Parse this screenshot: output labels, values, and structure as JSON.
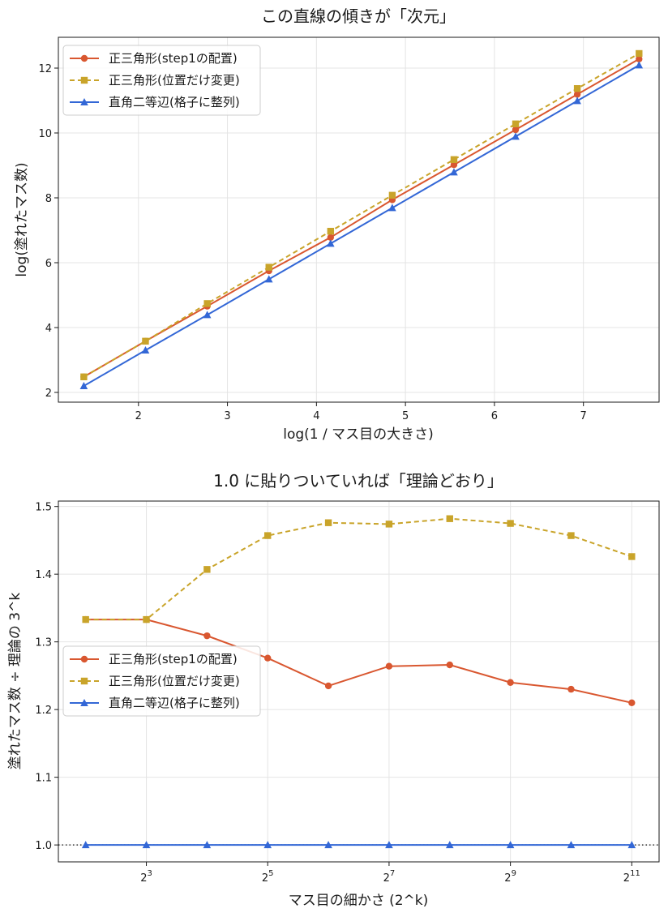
{
  "colors": {
    "equilateral_step1": "#d95730",
    "equilateral_moved": "#c9a42a",
    "right_isosceles": "#3367d6",
    "reference_line": "#333333"
  },
  "chart_data": [
    {
      "type": "line",
      "title": "この直線の傾きが「次元」",
      "xlabel": "log(1 / マス目の大きさ)",
      "ylabel": "log(塗れたマス数)",
      "xlim": [
        1.1,
        7.85
      ],
      "ylim": [
        1.7,
        12.95
      ],
      "xticks": [
        2,
        3,
        4,
        5,
        6,
        7
      ],
      "yticks": [
        2,
        4,
        6,
        8,
        10,
        12
      ],
      "grid": true,
      "legend": "top-left",
      "x": [
        1.386,
        2.079,
        2.773,
        3.466,
        4.159,
        4.852,
        5.545,
        6.238,
        6.931,
        7.625
      ],
      "series": [
        {
          "name": "正三角形(step1の配置)",
          "marker": "circle",
          "dash": "solid",
          "values": [
            2.48,
            3.58,
            4.66,
            5.75,
            6.78,
            7.94,
            9.02,
            10.1,
            11.19,
            12.28
          ]
        },
        {
          "name": "正三角形(位置だけ変更)",
          "marker": "square",
          "dash": "dashed",
          "values": [
            2.48,
            3.58,
            4.74,
            5.86,
            6.97,
            8.08,
            9.18,
            10.28,
            11.37,
            12.45
          ]
        },
        {
          "name": "直角二等辺(格子に整列)",
          "marker": "triangle",
          "dash": "solid",
          "values": [
            2.2,
            3.3,
            4.39,
            5.49,
            6.59,
            7.69,
            8.79,
            9.89,
            10.99,
            12.09
          ]
        }
      ]
    },
    {
      "type": "line",
      "title": "1.0 に貼りついていれば「理論どおり」",
      "xlabel": "マス目の細かさ (2^k)",
      "ylabel": "塗れたマス数 ÷ 理論の 3^k",
      "xscale": "log2",
      "xlim": [
        1.55,
        11.45
      ],
      "ylim": [
        0.975,
        1.508
      ],
      "xticks": [
        {
          "exp": 3,
          "base": "2",
          "sup": "3"
        },
        {
          "exp": 5,
          "base": "2",
          "sup": "5"
        },
        {
          "exp": 7,
          "base": "2",
          "sup": "7"
        },
        {
          "exp": 9,
          "base": "2",
          "sup": "9"
        },
        {
          "exp": 11,
          "base": "2",
          "sup": "11"
        }
      ],
      "yticks": [
        "1.0",
        "1.1",
        "1.2",
        "1.3",
        "1.4",
        "1.5"
      ],
      "grid": true,
      "legend": "center-left",
      "x": [
        2,
        3,
        4,
        5,
        6,
        7,
        8,
        9,
        10,
        11
      ],
      "reference": {
        "y": 1.0,
        "style": "dotted"
      },
      "series": [
        {
          "name": "正三角形(step1の配置)",
          "marker": "circle",
          "dash": "solid",
          "values": [
            1.333,
            1.333,
            1.309,
            1.276,
            1.235,
            1.264,
            1.266,
            1.24,
            1.23,
            1.21
          ]
        },
        {
          "name": "正三角形(位置だけ変更)",
          "marker": "square",
          "dash": "dashed",
          "values": [
            1.333,
            1.333,
            1.407,
            1.457,
            1.476,
            1.474,
            1.482,
            1.475,
            1.457,
            1.426
          ]
        },
        {
          "name": "直角二等辺(格子に整列)",
          "marker": "triangle",
          "dash": "solid",
          "values": [
            1.0,
            1.0,
            1.0,
            1.0,
            1.0,
            1.0,
            1.0,
            1.0,
            1.0,
            1.0
          ]
        }
      ]
    }
  ]
}
